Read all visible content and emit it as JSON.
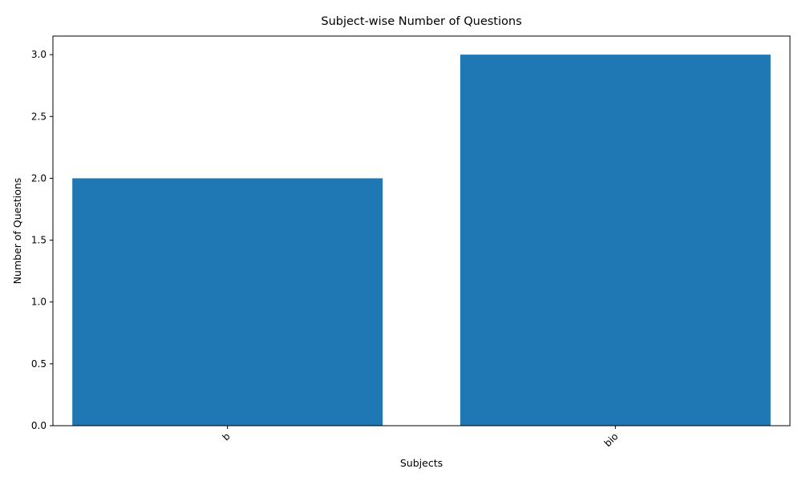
{
  "chart_data": {
    "type": "bar",
    "title": "Subject-wise Number of Questions",
    "xlabel": "Subjects",
    "ylabel": "Number of Questions",
    "categories": [
      "b",
      "bio"
    ],
    "values": [
      2,
      3
    ],
    "ylim": [
      0,
      3.15
    ],
    "yticks": [
      0,
      0.5,
      1,
      1.5,
      2,
      2.5,
      3
    ],
    "ytick_labels": [
      "0.0",
      "0.5",
      "1.0",
      "1.5",
      "2.0",
      "2.5",
      "3.0"
    ],
    "bar_color": "#1f77b4",
    "grid": false,
    "legend": "none",
    "xtick_rotation_deg": 45
  }
}
